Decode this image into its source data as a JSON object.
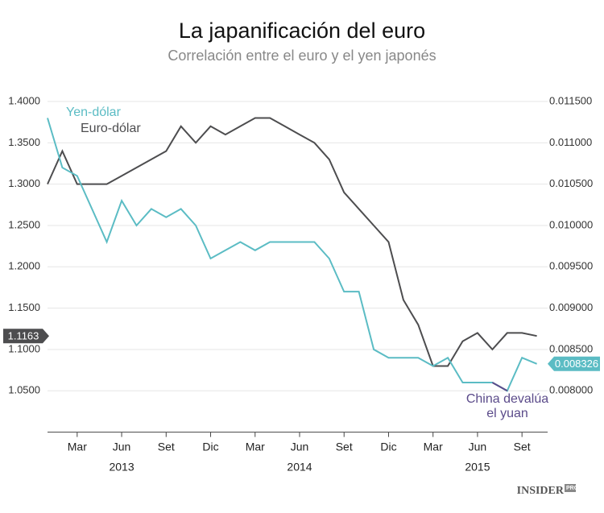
{
  "chart_data": {
    "type": "line",
    "title": "La japanificación del euro",
    "subtitle": "Correlación entre el euro y el yen japonés",
    "x": [
      "2013-01",
      "2013-02",
      "2013-03",
      "2013-04",
      "2013-05",
      "2013-06",
      "2013-07",
      "2013-08",
      "2013-09",
      "2013-10",
      "2013-11",
      "2013-12",
      "2014-01",
      "2014-02",
      "2014-03",
      "2014-04",
      "2014-05",
      "2014-06",
      "2014-07",
      "2014-08",
      "2014-09",
      "2014-10",
      "2014-11",
      "2014-12",
      "2015-01",
      "2015-02",
      "2015-03",
      "2015-04",
      "2015-05",
      "2015-06",
      "2015-07",
      "2015-08",
      "2015-09",
      "2015-10"
    ],
    "xlim": [
      "2013-01",
      "2015-11"
    ],
    "xticks": [
      {
        "value": "2013-03",
        "label": "Mar"
      },
      {
        "value": "2013-06",
        "label": "Jun"
      },
      {
        "value": "2013-09",
        "label": "Set"
      },
      {
        "value": "2013-12",
        "label": "Dic"
      },
      {
        "value": "2014-03",
        "label": "Mar"
      },
      {
        "value": "2014-06",
        "label": "Jun"
      },
      {
        "value": "2014-09",
        "label": "Set"
      },
      {
        "value": "2014-12",
        "label": "Dic"
      },
      {
        "value": "2015-03",
        "label": "Mar"
      },
      {
        "value": "2015-06",
        "label": "Jun"
      },
      {
        "value": "2015-09",
        "label": "Set"
      }
    ],
    "year_ticks": [
      {
        "value": "2013-06",
        "label": "2013"
      },
      {
        "value": "2014-06",
        "label": "2014"
      },
      {
        "value": "2015-06",
        "label": "2015"
      }
    ],
    "ylim": [
      1.0,
      1.4
    ],
    "yticks": [
      {
        "value": 1.05,
        "label": "1.0500"
      },
      {
        "value": 1.1,
        "label": "1.1000"
      },
      {
        "value": 1.15,
        "label": "1.1500"
      },
      {
        "value": 1.2,
        "label": "1.2000"
      },
      {
        "value": 1.25,
        "label": "1.2500"
      },
      {
        "value": 1.3,
        "label": "1.3000"
      },
      {
        "value": 1.35,
        "label": "1.3500"
      },
      {
        "value": 1.4,
        "label": "1.4000"
      }
    ],
    "y2lim": [
      0.0075,
      0.0115
    ],
    "y2ticks": [
      {
        "value": 0.008,
        "label": "0.008000"
      },
      {
        "value": 0.0085,
        "label": "0.008500"
      },
      {
        "value": 0.009,
        "label": "0.009000"
      },
      {
        "value": 0.0095,
        "label": "0.009500"
      },
      {
        "value": 0.01,
        "label": "0.010000"
      },
      {
        "value": 0.0105,
        "label": "0.010500"
      },
      {
        "value": 0.011,
        "label": "0.011000"
      },
      {
        "value": 0.0115,
        "label": "0.011500"
      }
    ],
    "grid": true,
    "series": [
      {
        "name": "Euro-dólar",
        "color": "#4d4d4f",
        "values": [
          1.3,
          1.34,
          1.3,
          1.3,
          1.3,
          1.31,
          1.32,
          1.33,
          1.34,
          1.37,
          1.35,
          1.37,
          1.36,
          1.37,
          1.38,
          1.38,
          1.37,
          1.36,
          1.35,
          1.33,
          1.29,
          1.27,
          1.25,
          1.23,
          1.16,
          1.13,
          1.08,
          1.08,
          1.11,
          1.12,
          1.1,
          1.12,
          1.12,
          1.1163
        ],
        "value_labels": [
          null,
          null,
          null,
          null,
          null,
          null,
          null,
          null,
          null,
          null,
          null,
          null,
          null,
          null,
          null,
          null,
          null,
          null,
          null,
          null,
          null,
          null,
          null,
          null,
          null,
          null,
          null,
          null,
          null,
          null,
          null,
          null,
          null,
          "1.1163"
        ]
      },
      {
        "name": "Yen-dólar",
        "color": "#5bbcc4",
        "axis": "y2",
        "values": [
          0.0113,
          0.0107,
          0.0106,
          0.0102,
          0.0098,
          0.0103,
          0.01,
          0.0102,
          0.0101,
          0.0102,
          0.01,
          0.0096,
          0.0097,
          0.0098,
          0.0097,
          0.0098,
          0.0098,
          0.0098,
          0.0098,
          0.0096,
          0.0092,
          0.0092,
          0.0085,
          0.0084,
          0.0084,
          0.0084,
          0.0083,
          0.0084,
          0.0081,
          0.0081,
          0.0081,
          0.008,
          0.0084,
          0.008326
        ],
        "value_labels": [
          null,
          null,
          null,
          null,
          null,
          null,
          null,
          null,
          null,
          null,
          null,
          null,
          null,
          null,
          null,
          null,
          null,
          null,
          null,
          null,
          null,
          null,
          null,
          null,
          null,
          null,
          null,
          null,
          null,
          null,
          null,
          null,
          null,
          "0.008326"
        ]
      },
      {
        "color": "#5b4b8a",
        "axis": "y2",
        "values": [
          null,
          null,
          null,
          null,
          null,
          null,
          null,
          null,
          null,
          null,
          null,
          null,
          null,
          null,
          null,
          null,
          null,
          null,
          null,
          null,
          null,
          null,
          null,
          null,
          null,
          null,
          null,
          null,
          null,
          null,
          0.0081,
          0.008,
          null,
          null
        ]
      }
    ],
    "annotation": [
      "China devalúa",
      "el yuan"
    ],
    "source": [
      "INSIDER",
      "PRO"
    ]
  }
}
